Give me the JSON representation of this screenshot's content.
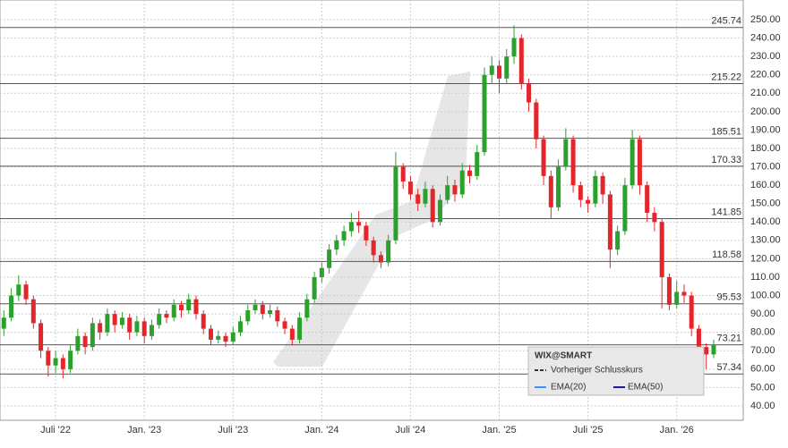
{
  "chart_data": {
    "type": "candlestick",
    "x": [
      2.5,
      3,
      3.5,
      4,
      4.5,
      5,
      5.5,
      6,
      6.5,
      7,
      7.5,
      8,
      8.5,
      9,
      9.5,
      10,
      10.5,
      11,
      11.5,
      12,
      12.5,
      13,
      13.5,
      14,
      14.5,
      15,
      15.5,
      16,
      16.5,
      17,
      17.5,
      18,
      18.5,
      19,
      19.5,
      20,
      20.5,
      21,
      21.5,
      22,
      22.5,
      23,
      23.5,
      24,
      24.5,
      25,
      25.5,
      26,
      26.5,
      27,
      27.5,
      28,
      28.5,
      29,
      29.5,
      30,
      30.5,
      31,
      31.5,
      32,
      32.5,
      33,
      33.5,
      34,
      34.5,
      35,
      35.5,
      36,
      36.5,
      37,
      37.5,
      38,
      38.5,
      39,
      39.5,
      40,
      40.5,
      41,
      41.5,
      42,
      42.5,
      43,
      43.5,
      44,
      44.5,
      45,
      45.5,
      46,
      46.5,
      47,
      47.5,
      48,
      48.5,
      49,
      49.5,
      50,
      50.5
    ],
    "candles": [
      [
        82,
        92,
        78,
        88
      ],
      [
        88,
        104,
        86,
        100
      ],
      [
        100,
        111,
        97,
        106
      ],
      [
        106,
        108,
        95,
        98
      ],
      [
        98,
        100,
        82,
        85
      ],
      [
        85,
        87,
        66,
        70
      ],
      [
        70,
        72,
        56,
        62
      ],
      [
        62,
        70,
        58,
        66
      ],
      [
        66,
        68,
        55,
        60
      ],
      [
        60,
        73,
        58,
        70
      ],
      [
        70,
        82,
        68,
        78
      ],
      [
        78,
        80,
        68,
        72
      ],
      [
        72,
        88,
        70,
        85
      ],
      [
        85,
        87,
        76,
        80
      ],
      [
        80,
        93,
        78,
        90
      ],
      [
        90,
        92,
        80,
        84
      ],
      [
        84,
        91,
        82,
        88
      ],
      [
        88,
        90,
        76,
        80
      ],
      [
        80,
        89,
        78,
        86
      ],
      [
        86,
        88,
        74,
        78
      ],
      [
        78,
        87,
        76,
        84
      ],
      [
        84,
        93,
        82,
        90
      ],
      [
        90,
        92,
        85,
        88
      ],
      [
        88,
        98,
        86,
        95
      ],
      [
        95,
        97,
        88,
        92
      ],
      [
        92,
        101,
        90,
        98
      ],
      [
        98,
        100,
        87,
        90
      ],
      [
        90,
        92,
        79,
        82
      ],
      [
        82,
        84,
        73,
        76
      ],
      [
        76,
        81,
        74,
        78
      ],
      [
        78,
        80,
        72,
        75
      ],
      [
        75,
        83,
        73,
        80
      ],
      [
        80,
        89,
        78,
        86
      ],
      [
        86,
        95,
        84,
        92
      ],
      [
        92,
        98,
        90,
        95
      ],
      [
        95,
        97,
        87,
        90
      ],
      [
        90,
        95,
        88,
        92
      ],
      [
        92,
        94,
        83,
        86
      ],
      [
        86,
        88,
        79,
        82
      ],
      [
        82,
        84,
        73,
        76
      ],
      [
        76,
        91,
        74,
        88
      ],
      [
        88,
        101,
        86,
        98
      ],
      [
        98,
        113,
        96,
        110
      ],
      [
        110,
        118,
        107,
        115
      ],
      [
        115,
        128,
        112,
        125
      ],
      [
        125,
        133,
        122,
        130
      ],
      [
        130,
        138,
        127,
        135
      ],
      [
        135,
        145,
        132,
        140
      ],
      [
        140,
        146,
        134,
        138
      ],
      [
        138,
        140,
        127,
        130
      ],
      [
        130,
        132,
        118,
        122
      ],
      [
        122,
        124,
        115,
        118
      ],
      [
        118,
        133,
        116,
        130
      ],
      [
        130,
        178,
        128,
        170
      ],
      [
        170,
        172,
        158,
        162
      ],
      [
        162,
        165,
        152,
        155
      ],
      [
        155,
        158,
        146,
        150
      ],
      [
        150,
        162,
        148,
        158
      ],
      [
        158,
        160,
        137,
        140
      ],
      [
        140,
        155,
        138,
        152
      ],
      [
        152,
        165,
        150,
        160
      ],
      [
        160,
        163,
        151,
        155
      ],
      [
        155,
        172,
        153,
        168
      ],
      [
        168,
        171,
        161,
        165
      ],
      [
        165,
        182,
        163,
        178
      ],
      [
        178,
        224,
        176,
        220
      ],
      [
        220,
        230,
        215,
        225
      ],
      [
        225,
        228,
        210,
        218
      ],
      [
        218,
        234,
        215,
        230
      ],
      [
        230,
        247,
        226,
        240
      ],
      [
        240,
        242,
        212,
        215
      ],
      [
        215,
        218,
        200,
        205
      ],
      [
        205,
        207,
        180,
        185
      ],
      [
        185,
        187,
        160,
        165
      ],
      [
        165,
        168,
        142,
        148
      ],
      [
        148,
        174,
        146,
        170
      ],
      [
        170,
        191,
        168,
        185
      ],
      [
        185,
        187,
        156,
        160
      ],
      [
        160,
        162,
        148,
        152
      ],
      [
        152,
        154,
        145,
        150
      ],
      [
        150,
        168,
        148,
        165
      ],
      [
        165,
        167,
        150,
        155
      ],
      [
        155,
        157,
        115,
        125
      ],
      [
        125,
        138,
        122,
        135
      ],
      [
        135,
        164,
        133,
        160
      ],
      [
        160,
        190,
        158,
        185
      ],
      [
        185,
        187,
        155,
        160
      ],
      [
        160,
        162,
        140,
        145
      ],
      [
        145,
        148,
        135,
        140
      ],
      [
        140,
        142,
        93,
        110
      ],
      [
        110,
        112,
        92,
        95
      ],
      [
        95,
        108,
        93,
        102
      ],
      [
        102,
        106,
        96,
        100
      ],
      [
        100,
        102,
        78,
        82
      ],
      [
        82,
        84,
        68,
        72
      ],
      [
        72,
        74,
        60,
        68
      ],
      [
        68,
        76,
        66,
        73
      ]
    ],
    "up_color": "#2ca02c",
    "down_color": "#e3262b",
    "xlim": [
      2.24,
      52.5
    ],
    "xticks": [
      {
        "value": 6,
        "label": "Juli '22"
      },
      {
        "value": 12,
        "label": "Jan. '23"
      },
      {
        "value": 18,
        "label": "Juli '23"
      },
      {
        "value": 24,
        "label": "Jan. '24"
      },
      {
        "value": 30,
        "label": "Juli '24"
      },
      {
        "value": 36,
        "label": "Jan. '25"
      },
      {
        "value": 42,
        "label": "Juli '25"
      },
      {
        "value": 48,
        "label": "Jan. '26"
      }
    ],
    "ylim": [
      32.2,
      260.7
    ],
    "yticks": [
      {
        "value": 40,
        "label": "40.00"
      },
      {
        "value": 50,
        "label": "50.00"
      },
      {
        "value": 60,
        "label": "60.00"
      },
      {
        "value": 70,
        "label": "70.00"
      },
      {
        "value": 80,
        "label": "80.00"
      },
      {
        "value": 90,
        "label": "90.00"
      },
      {
        "value": 100,
        "label": "100.00"
      },
      {
        "value": 110,
        "label": "110.00"
      },
      {
        "value": 120,
        "label": "120.00"
      },
      {
        "value": 130,
        "label": "130.00"
      },
      {
        "value": 140,
        "label": "140.00"
      },
      {
        "value": 150,
        "label": "150.00"
      },
      {
        "value": 160,
        "label": "160.00"
      },
      {
        "value": 170,
        "label": "170.00"
      },
      {
        "value": 180,
        "label": "180.00"
      },
      {
        "value": 190,
        "label": "190.00"
      },
      {
        "value": 200,
        "label": "200.00"
      },
      {
        "value": 210,
        "label": "210.00"
      },
      {
        "value": 220,
        "label": "220.00"
      },
      {
        "value": 230,
        "label": "230.00"
      },
      {
        "value": 240,
        "label": "240.00"
      },
      {
        "value": 250,
        "label": "250.00"
      }
    ],
    "levels": [
      245.74,
      215.22,
      185.51,
      170.33,
      141.85,
      118.58,
      95.53,
      73.21,
      57.34
    ],
    "grid": true,
    "legend": {
      "title": "WIX@SMART",
      "entries": [
        "Vorheriger Schlusskurs",
        "EMA(20)",
        "EMA(50)"
      ]
    }
  }
}
